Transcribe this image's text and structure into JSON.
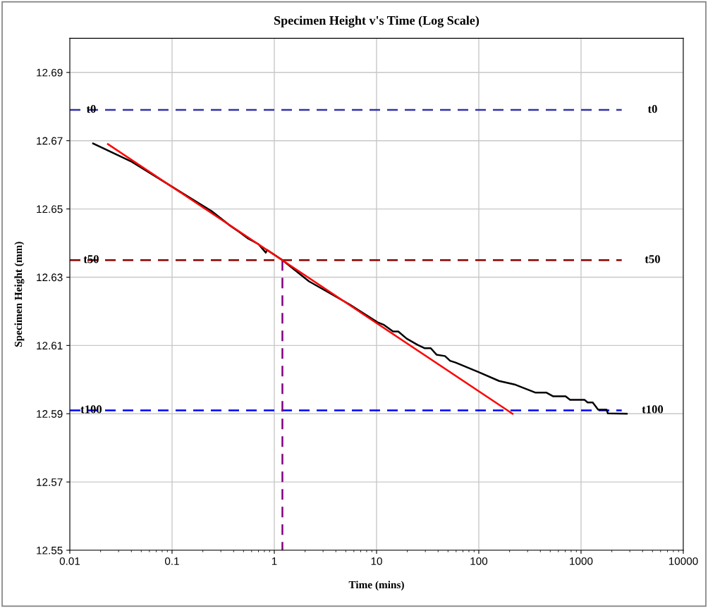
{
  "chart_data": {
    "type": "line",
    "title": "Specimen Height v's Time (Log Scale)",
    "xlabel": "Time (mins)",
    "ylabel": "Specimen Height (mm)",
    "log": "x",
    "grid": true,
    "xlim": [
      0.01,
      10000
    ],
    "xticks": [
      0.01,
      0.1,
      1,
      10,
      100,
      1000,
      10000
    ],
    "ylim": [
      12.55,
      12.7
    ],
    "yticks": [
      12.55,
      12.57,
      12.59,
      12.61,
      12.63,
      12.65,
      12.67,
      12.69
    ],
    "series": [
      {
        "name": "t0",
        "color": "#3333aa",
        "line_style": "dashed",
        "x": [
          0.01,
          2500
        ],
        "values": [
          12.679,
          12.679
        ]
      },
      {
        "name": "t50",
        "color": "#8b0000",
        "line_style": "dashed",
        "x": [
          0.01,
          2500
        ],
        "values": [
          12.635,
          12.635
        ]
      },
      {
        "name": "t100",
        "color": "#0000ff",
        "line_style": "dashed",
        "x": [
          0.01,
          2500
        ],
        "values": [
          12.591,
          12.591
        ]
      },
      {
        "color": "#800080",
        "line_style": "dashed",
        "x": [
          1.2,
          1.2
        ],
        "values": [
          12.635,
          12.55
        ]
      },
      {
        "color": "#000000",
        "line_style": "solid",
        "x": [
          0.0169,
          0.0404,
          0.1016,
          0.243,
          0.362,
          0.457,
          0.556,
          0.7,
          0.826,
          0.85,
          1.19,
          2.18,
          5.47,
          10.2,
          11.7,
          14.5,
          16.3,
          19.7,
          25.1,
          29.4,
          33.9,
          38.6,
          46.7,
          52.4,
          59.3,
          99.5,
          158,
          228,
          356,
          456,
          535,
          706,
          781,
          1080,
          1160,
          1300,
          1470,
          1780,
          1830,
          2800
        ],
        "values": [
          12.6692,
          12.6638,
          12.6564,
          12.6494,
          12.6453,
          12.6432,
          12.6413,
          12.6397,
          12.6372,
          12.638,
          12.6351,
          12.6288,
          12.622,
          12.6168,
          12.6161,
          12.6141,
          12.6141,
          12.612,
          12.6102,
          12.6092,
          12.6092,
          12.6073,
          12.6069,
          12.6055,
          12.605,
          12.6022,
          12.5996,
          12.5985,
          12.5962,
          12.5962,
          12.5951,
          12.5951,
          12.5941,
          12.5941,
          12.5933,
          12.5933,
          12.5912,
          12.5912,
          12.5901,
          12.59
        ]
      },
      {
        "color": "#ff0000",
        "line_style": "solid",
        "x": [
          0.0236,
          214
        ],
        "values": [
          12.669,
          12.59
        ]
      }
    ]
  }
}
